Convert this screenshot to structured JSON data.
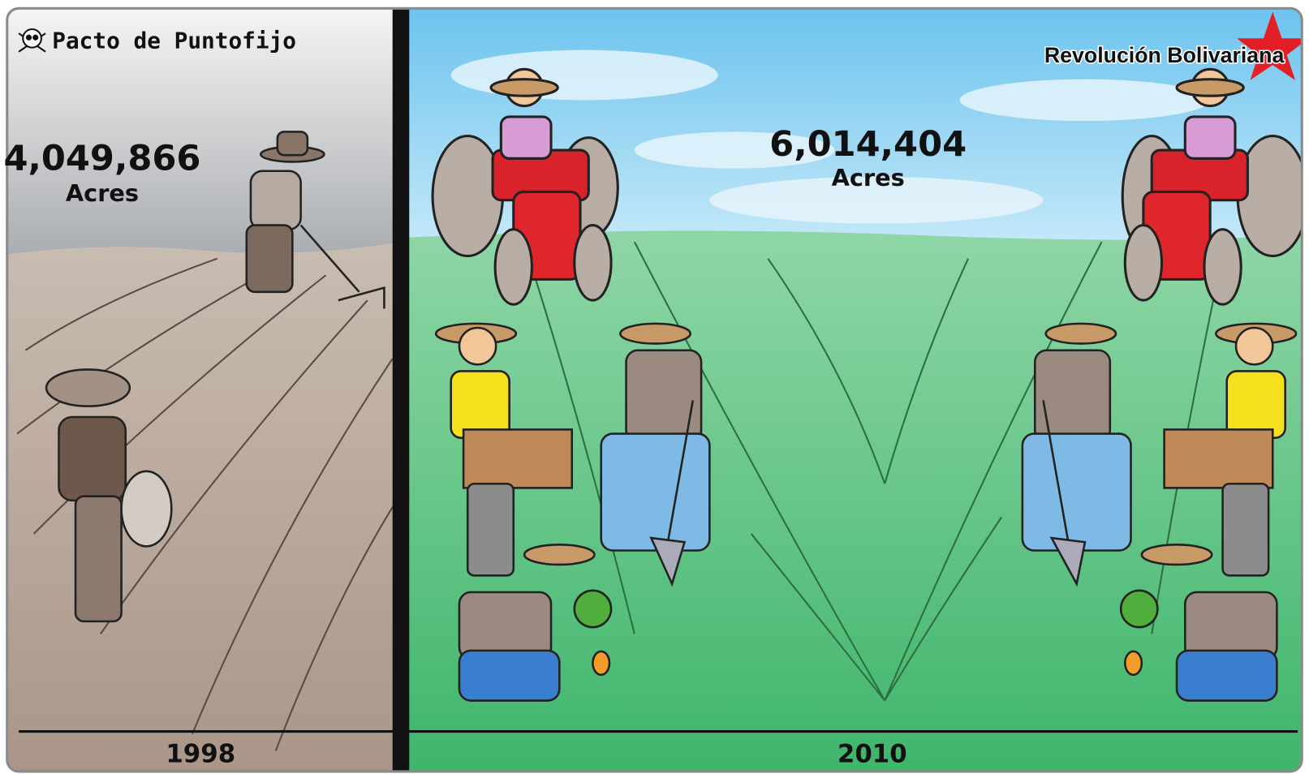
{
  "left": {
    "header": "Pacto de Puntofijo",
    "amount": "4,049,866",
    "unit": "Acres",
    "year": "1998"
  },
  "right": {
    "header": "Revolución Bolivariana",
    "amount": "6,014,404",
    "unit": "Acres",
    "year": "2010"
  }
}
